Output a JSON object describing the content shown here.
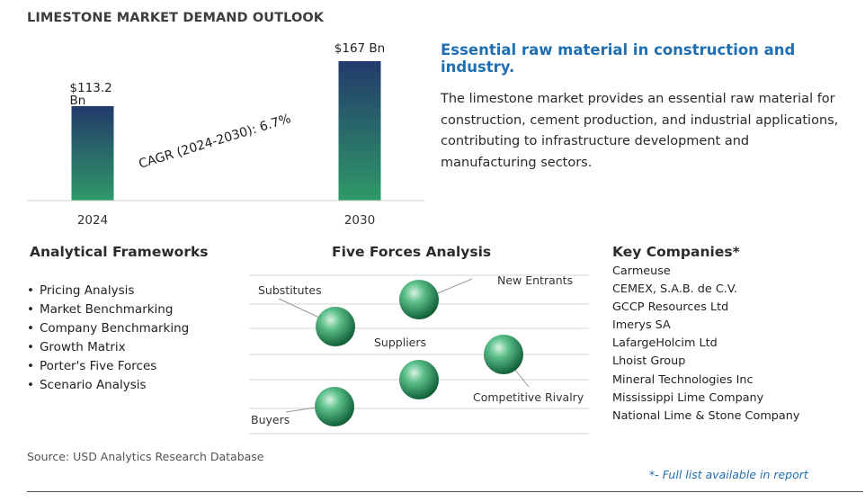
{
  "chart_data": {
    "type": "bar",
    "title": "LIMESTONE MARKET DEMAND OUTLOOK",
    "categories": [
      "2024",
      "2030"
    ],
    "values": [
      113.2,
      167
    ],
    "value_labels": [
      "$113.2 Bn",
      "$167 Bn"
    ],
    "unit": "Bn",
    "annotation": "CAGR (2024-2030):  6.7%",
    "grid": false,
    "legend": "none",
    "colors": {
      "bar_top": "#233a6b",
      "bar_bottom": "#2e9968"
    }
  },
  "headline": "Essential raw material in construction and industry.",
  "description": "The limestone market provides an essential raw material for construction, cement production, and industrial applications, contributing to infrastructure development and manufacturing sectors.",
  "frameworks": {
    "heading": "Analytical Frameworks",
    "items": [
      "Pricing Analysis",
      "Market Benchmarking",
      "Company Benchmarking",
      "Growth Matrix",
      "Porter's Five Forces",
      "Scenario Analysis"
    ]
  },
  "five_forces": {
    "heading": "Five Forces Analysis",
    "labels": [
      "Substitutes",
      "New Entrants",
      "Suppliers",
      "Competitive Rivalry",
      "Buyers"
    ],
    "sphere_color": "#2e9968"
  },
  "companies": {
    "heading": "Key Companies*",
    "items": [
      "Carmeuse",
      "CEMEX, S.A.B. de C.V.",
      "GCCP Resources Ltd",
      "Imerys SA",
      "LafargeHolcim Ltd",
      "Lhoist Group",
      "Mineral Technologies Inc",
      "Mississippi Lime Company",
      "National Lime & Stone Company"
    ]
  },
  "source": "Source: USD Analytics Research Database",
  "footnote": "*- Full list available in report"
}
